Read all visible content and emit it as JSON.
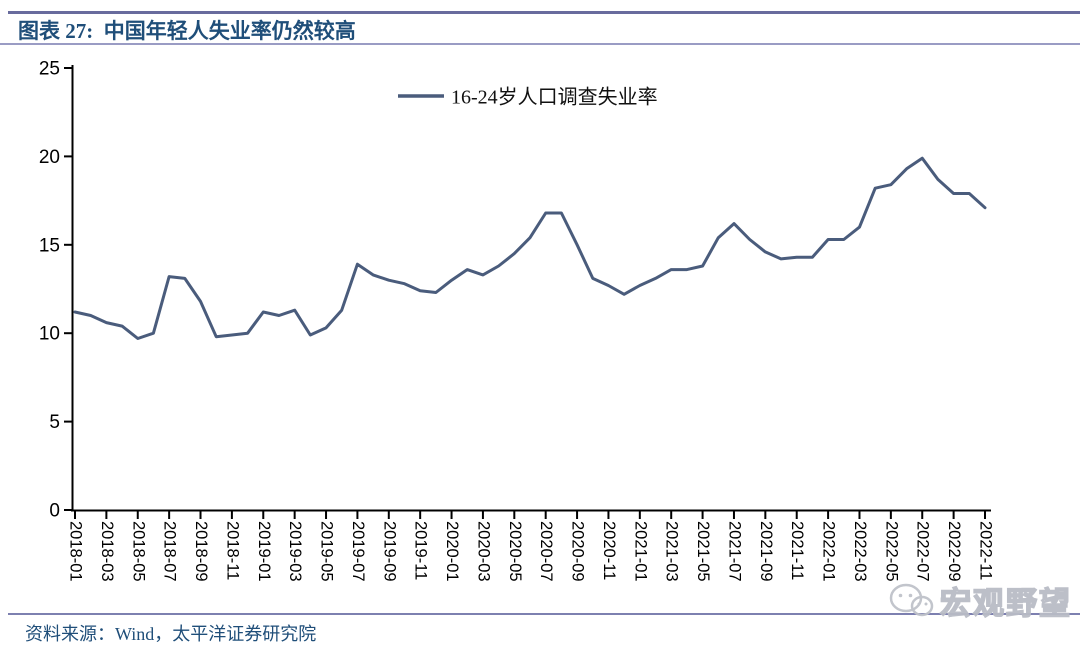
{
  "header": {
    "title": "图表 27:  中国年轻人失业率仍然较高"
  },
  "footer": {
    "source": "资料来源：Wind，太平洋证券研究院"
  },
  "watermark": {
    "icon": "wechat-icon",
    "text": "宏观野望"
  },
  "colors": {
    "line": "#4a5c7c",
    "title_text": "#1f4e79",
    "top_rule": "#686b9d",
    "axis": "#000000"
  },
  "chart_data": {
    "type": "line",
    "x": [
      "2018-01",
      "2018-02",
      "2018-03",
      "2018-04",
      "2018-05",
      "2018-06",
      "2018-07",
      "2018-08",
      "2018-09",
      "2018-10",
      "2018-11",
      "2018-12",
      "2019-01",
      "2019-02",
      "2019-03",
      "2019-04",
      "2019-05",
      "2019-06",
      "2019-07",
      "2019-08",
      "2019-09",
      "2019-10",
      "2019-11",
      "2019-12",
      "2020-01",
      "2020-02",
      "2020-03",
      "2020-04",
      "2020-05",
      "2020-06",
      "2020-07",
      "2020-08",
      "2020-09",
      "2020-10",
      "2020-11",
      "2020-12",
      "2021-01",
      "2021-02",
      "2021-03",
      "2021-04",
      "2021-05",
      "2021-06",
      "2021-07",
      "2021-08",
      "2021-09",
      "2021-10",
      "2021-11",
      "2021-12",
      "2022-01",
      "2022-02",
      "2022-03",
      "2022-04",
      "2022-05",
      "2022-06",
      "2022-07",
      "2022-08",
      "2022-09",
      "2022-10",
      "2022-11"
    ],
    "series": [
      {
        "name": "16-24岁人口调查失业率",
        "values": [
          11.2,
          11.0,
          10.6,
          10.4,
          9.7,
          10.0,
          13.2,
          13.1,
          11.8,
          9.8,
          9.9,
          10.0,
          11.2,
          11.0,
          11.3,
          9.9,
          10.3,
          11.3,
          13.9,
          13.3,
          13.0,
          12.8,
          12.4,
          12.3,
          13.0,
          13.6,
          13.3,
          13.8,
          14.5,
          15.4,
          16.8,
          16.8,
          15.0,
          13.1,
          12.7,
          12.2,
          12.7,
          13.1,
          13.6,
          13.6,
          13.8,
          15.4,
          16.2,
          15.3,
          14.6,
          14.2,
          14.3,
          14.3,
          15.3,
          15.3,
          16.0,
          18.2,
          18.4,
          19.3,
          19.9,
          18.7,
          17.9,
          17.9,
          17.1
        ]
      }
    ],
    "ylim": [
      0,
      25
    ],
    "yticks": [
      0,
      5,
      10,
      15,
      20,
      25
    ],
    "xtick_labels": [
      "2018-01",
      "2018-03",
      "2018-05",
      "2018-07",
      "2018-09",
      "2018-11",
      "2019-01",
      "2019-03",
      "2019-05",
      "2019-07",
      "2019-09",
      "2019-11",
      "2020-01",
      "2020-03",
      "2020-05",
      "2020-07",
      "2020-09",
      "2020-11",
      "2021-01",
      "2021-03",
      "2021-05",
      "2021-07",
      "2021-09",
      "2021-11",
      "2022-01",
      "2022-03",
      "2022-05",
      "2022-07",
      "2022-09",
      "2022-11"
    ],
    "grid": false,
    "legend_position": "top-center",
    "line_color": "#4a5c7c"
  }
}
